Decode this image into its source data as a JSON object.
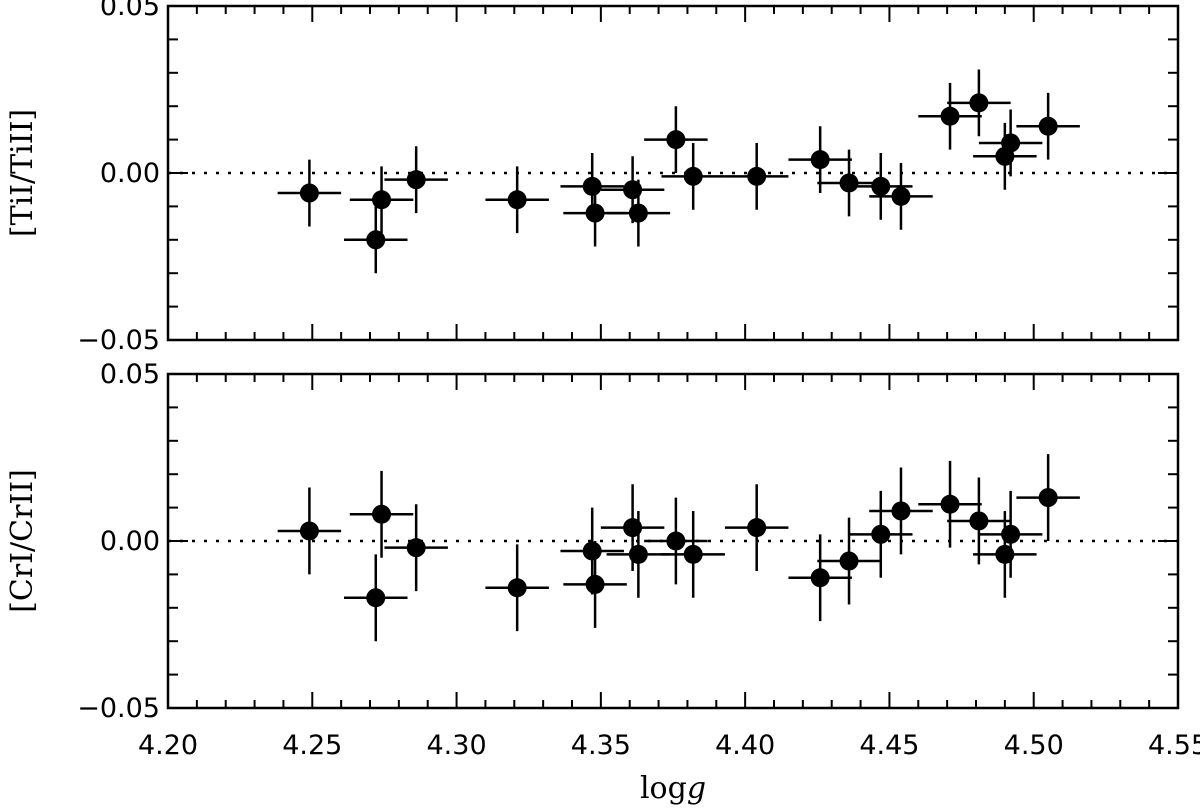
{
  "chart_data": [
    {
      "type": "scatter",
      "ylabel": "[TiI/TiII]",
      "xlabel": "",
      "xlim": [
        4.2,
        4.55
      ],
      "ylim": [
        -0.05,
        0.05
      ],
      "yticks": [
        "0.05",
        "0.00",
        "−0.05"
      ],
      "reference_line": {
        "y": 0.0,
        "style": "dotted"
      },
      "points": [
        {
          "x": 4.249,
          "y": -0.006,
          "xerr": 0.011,
          "yerr": 0.01
        },
        {
          "x": 4.272,
          "y": -0.02,
          "xerr": 0.011,
          "yerr": 0.01
        },
        {
          "x": 4.274,
          "y": -0.008,
          "xerr": 0.011,
          "yerr": 0.01
        },
        {
          "x": 4.286,
          "y": -0.002,
          "xerr": 0.011,
          "yerr": 0.01
        },
        {
          "x": 4.321,
          "y": -0.008,
          "xerr": 0.011,
          "yerr": 0.01
        },
        {
          "x": 4.347,
          "y": -0.004,
          "xerr": 0.011,
          "yerr": 0.01
        },
        {
          "x": 4.348,
          "y": -0.012,
          "xerr": 0.011,
          "yerr": 0.01
        },
        {
          "x": 4.361,
          "y": -0.005,
          "xerr": 0.011,
          "yerr": 0.01
        },
        {
          "x": 4.363,
          "y": -0.012,
          "xerr": 0.011,
          "yerr": 0.01
        },
        {
          "x": 4.376,
          "y": 0.01,
          "xerr": 0.011,
          "yerr": 0.01
        },
        {
          "x": 4.382,
          "y": -0.001,
          "xerr": 0.011,
          "yerr": 0.01
        },
        {
          "x": 4.404,
          "y": -0.001,
          "xerr": 0.011,
          "yerr": 0.01
        },
        {
          "x": 4.426,
          "y": 0.004,
          "xerr": 0.011,
          "yerr": 0.01
        },
        {
          "x": 4.436,
          "y": -0.003,
          "xerr": 0.011,
          "yerr": 0.01
        },
        {
          "x": 4.447,
          "y": -0.004,
          "xerr": 0.011,
          "yerr": 0.01
        },
        {
          "x": 4.454,
          "y": -0.007,
          "xerr": 0.011,
          "yerr": 0.01
        },
        {
          "x": 4.471,
          "y": 0.017,
          "xerr": 0.011,
          "yerr": 0.01
        },
        {
          "x": 4.481,
          "y": 0.021,
          "xerr": 0.011,
          "yerr": 0.01
        },
        {
          "x": 4.49,
          "y": 0.005,
          "xerr": 0.011,
          "yerr": 0.01
        },
        {
          "x": 4.492,
          "y": 0.009,
          "xerr": 0.011,
          "yerr": 0.01
        },
        {
          "x": 4.505,
          "y": 0.014,
          "xerr": 0.011,
          "yerr": 0.01
        }
      ]
    },
    {
      "type": "scatter",
      "ylabel": "[CrI/CrII]",
      "xlabel": "logg",
      "xlim": [
        4.2,
        4.55
      ],
      "ylim": [
        -0.05,
        0.05
      ],
      "xticks": [
        "4.20",
        "4.25",
        "4.30",
        "4.35",
        "4.40",
        "4.45",
        "4.50",
        "4.55"
      ],
      "yticks": [
        "0.05",
        "0.00",
        "−0.05"
      ],
      "reference_line": {
        "y": 0.0,
        "style": "dotted"
      },
      "points": [
        {
          "x": 4.249,
          "y": 0.003,
          "xerr": 0.011,
          "yerr": 0.013
        },
        {
          "x": 4.272,
          "y": -0.017,
          "xerr": 0.011,
          "yerr": 0.013
        },
        {
          "x": 4.274,
          "y": 0.008,
          "xerr": 0.011,
          "yerr": 0.013
        },
        {
          "x": 4.286,
          "y": -0.002,
          "xerr": 0.011,
          "yerr": 0.013
        },
        {
          "x": 4.321,
          "y": -0.014,
          "xerr": 0.011,
          "yerr": 0.013
        },
        {
          "x": 4.347,
          "y": -0.003,
          "xerr": 0.011,
          "yerr": 0.013
        },
        {
          "x": 4.348,
          "y": -0.013,
          "xerr": 0.011,
          "yerr": 0.013
        },
        {
          "x": 4.361,
          "y": 0.004,
          "xerr": 0.011,
          "yerr": 0.013
        },
        {
          "x": 4.363,
          "y": -0.004,
          "xerr": 0.011,
          "yerr": 0.013
        },
        {
          "x": 4.376,
          "y": 0.0,
          "xerr": 0.011,
          "yerr": 0.013
        },
        {
          "x": 4.382,
          "y": -0.004,
          "xerr": 0.011,
          "yerr": 0.013
        },
        {
          "x": 4.404,
          "y": 0.004,
          "xerr": 0.011,
          "yerr": 0.013
        },
        {
          "x": 4.426,
          "y": -0.011,
          "xerr": 0.011,
          "yerr": 0.013
        },
        {
          "x": 4.436,
          "y": -0.006,
          "xerr": 0.011,
          "yerr": 0.013
        },
        {
          "x": 4.447,
          "y": 0.002,
          "xerr": 0.011,
          "yerr": 0.013
        },
        {
          "x": 4.454,
          "y": 0.009,
          "xerr": 0.011,
          "yerr": 0.013
        },
        {
          "x": 4.471,
          "y": 0.011,
          "xerr": 0.011,
          "yerr": 0.013
        },
        {
          "x": 4.481,
          "y": 0.006,
          "xerr": 0.011,
          "yerr": 0.013
        },
        {
          "x": 4.49,
          "y": -0.004,
          "xerr": 0.011,
          "yerr": 0.013
        },
        {
          "x": 4.492,
          "y": 0.002,
          "xerr": 0.011,
          "yerr": 0.013
        },
        {
          "x": 4.505,
          "y": 0.013,
          "xerr": 0.011,
          "yerr": 0.013
        }
      ]
    }
  ]
}
